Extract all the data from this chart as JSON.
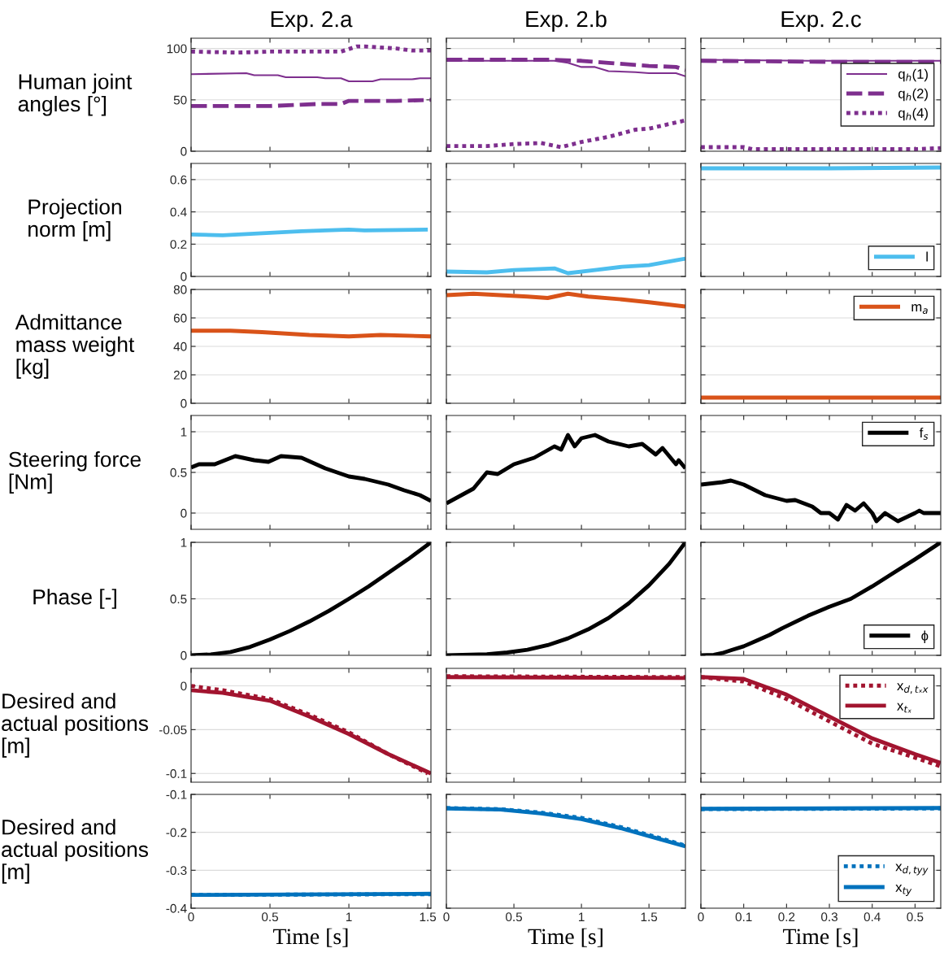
{
  "chart_data": [
    {
      "type": "line",
      "title": "Exp. 2.a",
      "ylabel": "Human joint angles [°]",
      "xlim": [
        0,
        1.52
      ],
      "xticks": [
        0,
        0.5,
        1,
        1.5
      ],
      "ylim": [
        0,
        110
      ],
      "yticks": [
        0,
        50,
        100
      ],
      "grid": "y",
      "tick_labels": "y",
      "series": [
        {
          "color": "#7e2f8e",
          "line_style": "solid",
          "x": [
            0,
            0.35,
            0.4,
            0.55,
            0.6,
            0.8,
            0.85,
            0.95,
            1.0,
            1.15,
            1.2,
            1.4,
            1.45,
            1.52
          ],
          "values": [
            75,
            76,
            74,
            74,
            72,
            72,
            71,
            71,
            68,
            68,
            70,
            70,
            71,
            71
          ]
        },
        {
          "color": "#7e2f8e",
          "line_style": "dashed",
          "x": [
            0,
            0.5,
            0.8,
            0.95,
            1.0,
            1.3,
            1.52
          ],
          "values": [
            44,
            44,
            46,
            46,
            49,
            49,
            50
          ]
        },
        {
          "color": "#7e2f8e",
          "line_style": "dotted",
          "x": [
            0,
            0.3,
            0.5,
            0.95,
            1.05,
            1.1,
            1.3,
            1.4,
            1.52
          ],
          "values": [
            97,
            96,
            97,
            97,
            102,
            102,
            100,
            98,
            98
          ]
        }
      ]
    },
    {
      "type": "line",
      "title": "Exp. 2.b",
      "xlim": [
        0,
        1.77
      ],
      "xticks": [
        0,
        0.5,
        1,
        1.5
      ],
      "ylim": [
        0,
        110
      ],
      "yticks": [
        0,
        50,
        100
      ],
      "grid": "y",
      "tick_labels": false,
      "series": [
        {
          "color": "#7e2f8e",
          "line_style": "solid",
          "x": [
            0,
            0.8,
            0.9,
            1.0,
            1.1,
            1.2,
            1.4,
            1.5,
            1.7,
            1.77
          ],
          "values": [
            88,
            88,
            86,
            82,
            82,
            78,
            77,
            76,
            76,
            73
          ]
        },
        {
          "color": "#7e2f8e",
          "line_style": "dashed",
          "x": [
            0,
            0.8,
            1.0,
            1.2,
            1.5,
            1.7,
            1.77
          ],
          "values": [
            89,
            89,
            88,
            86,
            83,
            82,
            79
          ]
        },
        {
          "color": "#7e2f8e",
          "line_style": "dotted",
          "x": [
            0,
            0.3,
            0.5,
            0.7,
            0.85,
            1.0,
            1.2,
            1.4,
            1.5,
            1.7,
            1.77
          ],
          "values": [
            5,
            5,
            7,
            8,
            4,
            9,
            14,
            21,
            22,
            28,
            30
          ]
        }
      ]
    },
    {
      "type": "line",
      "title": "Exp. 2.c",
      "xlim": [
        0,
        0.56
      ],
      "xticks": [
        0,
        0.1,
        0.2,
        0.3,
        0.4,
        0.5
      ],
      "ylim": [
        0,
        110
      ],
      "yticks": [
        0,
        50,
        100
      ],
      "grid": "y",
      "tick_labels": false,
      "legend": "right",
      "series": [
        {
          "name": "q$_{h}$(1)",
          "color": "#7e2f8e",
          "line_style": "solid",
          "x": [
            0,
            0.25,
            0.56
          ],
          "values": [
            89,
            88,
            88
          ]
        },
        {
          "name": "q$_{h}$(2)",
          "color": "#7e2f8e",
          "line_style": "dashed",
          "x": [
            0,
            0.3,
            0.56
          ],
          "values": [
            88,
            87,
            87
          ]
        },
        {
          "name": "q$_{h}$(4)",
          "color": "#7e2f8e",
          "line_style": "dotted",
          "x": [
            0,
            0.1,
            0.12,
            0.5,
            0.56
          ],
          "values": [
            4,
            4,
            2,
            2,
            3
          ]
        }
      ]
    },
    {
      "type": "line",
      "ylabel": "Projection norm [m]",
      "xlim": [
        0,
        1.52
      ],
      "xticks": [
        0,
        0.5,
        1,
        1.5
      ],
      "ylim": [
        0,
        0.7
      ],
      "yticks": [
        0,
        0.2,
        0.4,
        0.6
      ],
      "grid": "y",
      "tick_labels": "y",
      "series": [
        {
          "color": "#4dbeee",
          "line_style": "solid",
          "x": [
            0,
            0.2,
            0.5,
            0.7,
            1.0,
            1.1,
            1.5
          ],
          "values": [
            0.26,
            0.255,
            0.27,
            0.28,
            0.29,
            0.285,
            0.29
          ]
        }
      ]
    },
    {
      "type": "line",
      "xlim": [
        0,
        1.77
      ],
      "xticks": [
        0,
        0.5,
        1,
        1.5
      ],
      "ylim": [
        0,
        0.7
      ],
      "yticks": [
        0,
        0.2,
        0.4,
        0.6
      ],
      "grid": "y",
      "tick_labels": false,
      "series": [
        {
          "color": "#4dbeee",
          "line_style": "solid",
          "x": [
            0,
            0.3,
            0.5,
            0.8,
            0.9,
            1.1,
            1.3,
            1.5,
            1.7,
            1.77
          ],
          "values": [
            0.03,
            0.025,
            0.04,
            0.05,
            0.02,
            0.04,
            0.06,
            0.07,
            0.1,
            0.11
          ]
        }
      ]
    },
    {
      "type": "line",
      "xlim": [
        0,
        0.56
      ],
      "xticks": [
        0,
        0.1,
        0.2,
        0.3,
        0.4,
        0.5
      ],
      "ylim": [
        0,
        0.7
      ],
      "yticks": [
        0,
        0.2,
        0.4,
        0.6
      ],
      "grid": "y",
      "tick_labels": false,
      "legend": "bottom right",
      "series": [
        {
          "name": "l",
          "color": "#4dbeee",
          "line_style": "solid",
          "x": [
            0,
            0.3,
            0.56
          ],
          "values": [
            0.67,
            0.67,
            0.675
          ]
        }
      ]
    },
    {
      "type": "line",
      "ylabel": "Admittance mass weight [kg]",
      "xlim": [
        0,
        1.52
      ],
      "xticks": [
        0,
        0.5,
        1,
        1.5
      ],
      "ylim": [
        0,
        80
      ],
      "yticks": [
        0,
        20,
        40,
        60,
        80
      ],
      "grid": "y",
      "tick_labels": "y",
      "series": [
        {
          "color": "#d95319",
          "line_style": "solid",
          "x": [
            0,
            0.25,
            0.45,
            0.75,
            1.0,
            1.2,
            1.52
          ],
          "values": [
            51,
            51,
            50,
            48,
            47,
            48,
            47
          ]
        }
      ]
    },
    {
      "type": "line",
      "xlim": [
        0,
        1.77
      ],
      "xticks": [
        0,
        0.5,
        1,
        1.5
      ],
      "ylim": [
        0,
        80
      ],
      "yticks": [
        0,
        20,
        40,
        60,
        80
      ],
      "grid": "y",
      "tick_labels": false,
      "series": [
        {
          "color": "#d95319",
          "line_style": "solid",
          "x": [
            0,
            0.2,
            0.6,
            0.75,
            0.9,
            1.05,
            1.3,
            1.5,
            1.77
          ],
          "values": [
            76,
            77,
            75,
            74,
            77,
            75,
            73,
            71,
            68
          ]
        }
      ]
    },
    {
      "type": "line",
      "xlim": [
        0,
        0.56
      ],
      "xticks": [
        0,
        0.1,
        0.2,
        0.3,
        0.4,
        0.5
      ],
      "ylim": [
        0,
        80
      ],
      "yticks": [
        0,
        20,
        40,
        60,
        80
      ],
      "grid": "y",
      "tick_labels": false,
      "legend": "top right",
      "series": [
        {
          "name": "m$_{a}$",
          "color": "#d95319",
          "line_style": "solid",
          "x": [
            0,
            0.56
          ],
          "values": [
            4,
            4
          ]
        }
      ]
    },
    {
      "type": "line",
      "ylabel": "Steering force [Nm]",
      "xlim": [
        0,
        1.52
      ],
      "xticks": [
        0,
        0.5,
        1,
        1.5
      ],
      "ylim": [
        -0.2,
        1.2
      ],
      "yticks": [
        0,
        0.5,
        1
      ],
      "grid": "y",
      "tick_labels": "y",
      "series": [
        {
          "color": "#000000",
          "line_style": "solid",
          "x": [
            0,
            0.05,
            0.15,
            0.28,
            0.4,
            0.49,
            0.57,
            0.7,
            0.85,
            1.0,
            1.1,
            1.25,
            1.35,
            1.45,
            1.52
          ],
          "values": [
            0.56,
            0.6,
            0.6,
            0.7,
            0.65,
            0.63,
            0.7,
            0.68,
            0.55,
            0.45,
            0.42,
            0.35,
            0.28,
            0.22,
            0.15
          ]
        }
      ]
    },
    {
      "type": "line",
      "xlim": [
        0,
        1.77
      ],
      "xticks": [
        0,
        0.5,
        1,
        1.5
      ],
      "ylim": [
        -0.2,
        1.2
      ],
      "yticks": [
        0,
        0.5,
        1
      ],
      "grid": "y",
      "tick_labels": false,
      "series": [
        {
          "color": "#000000",
          "line_style": "solid",
          "x": [
            0,
            0.2,
            0.3,
            0.38,
            0.5,
            0.65,
            0.8,
            0.85,
            0.9,
            0.95,
            1.0,
            1.1,
            1.2,
            1.35,
            1.45,
            1.55,
            1.6,
            1.7,
            1.72,
            1.77
          ],
          "values": [
            0.12,
            0.3,
            0.5,
            0.48,
            0.6,
            0.68,
            0.82,
            0.78,
            0.96,
            0.82,
            0.92,
            0.96,
            0.88,
            0.82,
            0.85,
            0.72,
            0.8,
            0.6,
            0.65,
            0.55
          ]
        }
      ]
    },
    {
      "type": "line",
      "xlim": [
        0,
        0.56
      ],
      "xticks": [
        0,
        0.1,
        0.2,
        0.3,
        0.4,
        0.5
      ],
      "ylim": [
        -0.2,
        1.2
      ],
      "yticks": [
        0,
        0.5,
        1
      ],
      "grid": "y",
      "tick_labels": false,
      "legend": "top right",
      "series": [
        {
          "name": "f$_{s}$",
          "color": "#000000",
          "line_style": "solid",
          "x": [
            0,
            0.05,
            0.07,
            0.1,
            0.15,
            0.2,
            0.22,
            0.26,
            0.28,
            0.3,
            0.32,
            0.34,
            0.36,
            0.38,
            0.4,
            0.41,
            0.43,
            0.46,
            0.5,
            0.51,
            0.52,
            0.56
          ],
          "values": [
            0.35,
            0.38,
            0.4,
            0.35,
            0.22,
            0.15,
            0.16,
            0.08,
            0,
            0,
            -0.08,
            0.1,
            0.03,
            0.12,
            0,
            -0.1,
            0,
            -0.1,
            0,
            0.03,
            0,
            0
          ]
        }
      ]
    },
    {
      "type": "line",
      "ylabel": "Phase [-]",
      "xlim": [
        0,
        1.52
      ],
      "xticks": [
        0,
        0.5,
        1,
        1.5
      ],
      "ylim": [
        0,
        1
      ],
      "yticks": [
        0,
        0.5,
        1
      ],
      "grid": "y",
      "tick_labels": "y",
      "series": [
        {
          "color": "#000000",
          "line_style": "solid",
          "x": [
            0,
            0.125,
            0.25,
            0.375,
            0.5,
            0.625,
            0.75,
            0.875,
            1.0,
            1.125,
            1.25,
            1.375,
            1.52
          ],
          "values": [
            0,
            0.008,
            0.03,
            0.075,
            0.14,
            0.215,
            0.3,
            0.395,
            0.5,
            0.61,
            0.73,
            0.85,
            1.0
          ]
        }
      ]
    },
    {
      "type": "line",
      "xlim": [
        0,
        1.77
      ],
      "xticks": [
        0,
        0.5,
        1,
        1.5
      ],
      "ylim": [
        0,
        1
      ],
      "yticks": [
        0,
        0.5,
        1
      ],
      "grid": "y",
      "tick_labels": false,
      "series": [
        {
          "color": "#000000",
          "line_style": "solid",
          "x": [
            0,
            0.3,
            0.45,
            0.6,
            0.75,
            0.9,
            1.05,
            1.2,
            1.35,
            1.5,
            1.65,
            1.77
          ],
          "values": [
            0,
            0.01,
            0.025,
            0.05,
            0.09,
            0.15,
            0.23,
            0.33,
            0.46,
            0.62,
            0.81,
            1.0
          ]
        }
      ]
    },
    {
      "type": "line",
      "xlim": [
        0,
        0.56
      ],
      "xticks": [
        0,
        0.1,
        0.2,
        0.3,
        0.4,
        0.5
      ],
      "ylim": [
        0,
        1
      ],
      "yticks": [
        0,
        0.5,
        1
      ],
      "grid": "y",
      "tick_labels": false,
      "legend": "bottom right",
      "series": [
        {
          "name": "ϕ",
          "color": "#000000",
          "line_style": "solid",
          "x": [
            0,
            0.03,
            0.05,
            0.07,
            0.1,
            0.13,
            0.16,
            0.19,
            0.25,
            0.3,
            0.35,
            0.4,
            0.45,
            0.5,
            0.56
          ],
          "values": [
            0,
            0.005,
            0.02,
            0.045,
            0.08,
            0.13,
            0.18,
            0.24,
            0.35,
            0.43,
            0.5,
            0.61,
            0.73,
            0.85,
            1.0
          ]
        }
      ]
    },
    {
      "type": "line",
      "ylabel": "Desired and actual positions [m]",
      "xlim": [
        0,
        1.52
      ],
      "xticks": [
        0,
        0.5,
        1,
        1.5
      ],
      "ylim": [
        -0.11,
        0.02
      ],
      "yticks": [
        -0.1,
        -0.05,
        0
      ],
      "grid": "y",
      "tick_labels": "y",
      "series": [
        {
          "color": "#a2142f",
          "line_style": "dotted",
          "x": [
            0,
            0.2,
            0.5,
            0.75,
            1.0,
            1.25,
            1.5
          ],
          "values": [
            0,
            -0.005,
            -0.015,
            -0.033,
            -0.053,
            -0.078,
            -0.1
          ]
        },
        {
          "color": "#a2142f",
          "line_style": "solid",
          "x": [
            0,
            0.2,
            0.5,
            0.75,
            1.0,
            1.25,
            1.52
          ],
          "values": [
            -0.005,
            -0.008,
            -0.017,
            -0.035,
            -0.055,
            -0.078,
            -0.1
          ]
        }
      ]
    },
    {
      "type": "line",
      "xlim": [
        0,
        1.77
      ],
      "xticks": [
        0,
        0.5,
        1,
        1.5
      ],
      "ylim": [
        -0.11,
        0.02
      ],
      "yticks": [
        -0.1,
        -0.05,
        0
      ],
      "grid": "y",
      "tick_labels": false,
      "series": [
        {
          "color": "#a2142f",
          "line_style": "dotted",
          "x": [
            0,
            1.77
          ],
          "values": [
            0.011,
            0.01
          ]
        },
        {
          "color": "#a2142f",
          "line_style": "solid",
          "x": [
            0,
            1.77
          ],
          "values": [
            0.01,
            0.009
          ]
        }
      ]
    },
    {
      "type": "line",
      "xlim": [
        0,
        0.56
      ],
      "xticks": [
        0,
        0.1,
        0.2,
        0.3,
        0.4,
        0.5
      ],
      "ylim": [
        -0.11,
        0.02
      ],
      "yticks": [
        -0.1,
        -0.05,
        0
      ],
      "grid": "y",
      "tick_labels": false,
      "legend": "top right",
      "series": [
        {
          "name": "x$_{d,tₓx}$",
          "color": "#a2142f",
          "line_style": "dotted",
          "x": [
            0,
            0.1,
            0.2,
            0.4,
            0.5,
            0.56
          ],
          "values": [
            0.01,
            0.005,
            -0.015,
            -0.066,
            -0.082,
            -0.092
          ]
        },
        {
          "name": "x$_{tₓ}$",
          "color": "#a2142f",
          "line_style": "solid",
          "x": [
            0,
            0.1,
            0.2,
            0.4,
            0.5,
            0.56
          ],
          "values": [
            0.01,
            0.008,
            -0.01,
            -0.06,
            -0.078,
            -0.088
          ]
        }
      ]
    },
    {
      "type": "line",
      "ylabel": "Desired and actual positions [m]",
      "xlabel": "Time [s]",
      "xlim": [
        0,
        1.52
      ],
      "xticks": [
        0,
        0.5,
        1,
        1.5
      ],
      "ylim": [
        -0.4,
        -0.1
      ],
      "yticks": [
        -0.4,
        -0.3,
        -0.2,
        -0.1
      ],
      "grid": "y",
      "series": [
        {
          "color": "#0072bd",
          "line_style": "dotted",
          "x": [
            0,
            1.52
          ],
          "values": [
            -0.365,
            -0.363
          ]
        },
        {
          "color": "#0072bd",
          "line_style": "solid",
          "x": [
            0,
            1.52
          ],
          "values": [
            -0.365,
            -0.362
          ]
        }
      ]
    },
    {
      "type": "line",
      "xlabel": "Time [s]",
      "xlim": [
        0,
        1.77
      ],
      "xticks": [
        0,
        0.5,
        1,
        1.5
      ],
      "ylim": [
        -0.4,
        -0.1
      ],
      "yticks": [
        -0.4,
        -0.3,
        -0.2,
        -0.1
      ],
      "grid": "y",
      "tick_labels": "x",
      "series": [
        {
          "color": "#0072bd",
          "line_style": "dotted",
          "x": [
            0,
            0.4,
            0.7,
            1.0,
            1.3,
            1.55,
            1.77
          ],
          "values": [
            -0.136,
            -0.139,
            -0.148,
            -0.162,
            -0.187,
            -0.212,
            -0.235
          ]
        },
        {
          "color": "#0072bd",
          "line_style": "solid",
          "x": [
            0,
            0.4,
            0.7,
            1.0,
            1.3,
            1.55,
            1.77
          ],
          "values": [
            -0.137,
            -0.14,
            -0.15,
            -0.165,
            -0.19,
            -0.215,
            -0.237
          ]
        }
      ]
    },
    {
      "type": "line",
      "xlabel": "Time [s]",
      "xlim": [
        0,
        0.56
      ],
      "xticks": [
        0,
        0.1,
        0.2,
        0.3,
        0.4,
        0.5
      ],
      "ylim": [
        -0.4,
        -0.1
      ],
      "yticks": [
        -0.4,
        -0.3,
        -0.2,
        -0.1
      ],
      "grid": "y",
      "tick_labels": "x",
      "legend": "bottom right",
      "series": [
        {
          "name": "x$_{d,tyy}$",
          "color": "#0072bd",
          "line_style": "dotted",
          "x": [
            0,
            0.56
          ],
          "values": [
            -0.139,
            -0.137
          ]
        },
        {
          "name": "x$_{ty}$",
          "color": "#0072bd",
          "line_style": "solid",
          "x": [
            0,
            0.56
          ],
          "values": [
            -0.138,
            -0.136
          ]
        }
      ]
    }
  ]
}
